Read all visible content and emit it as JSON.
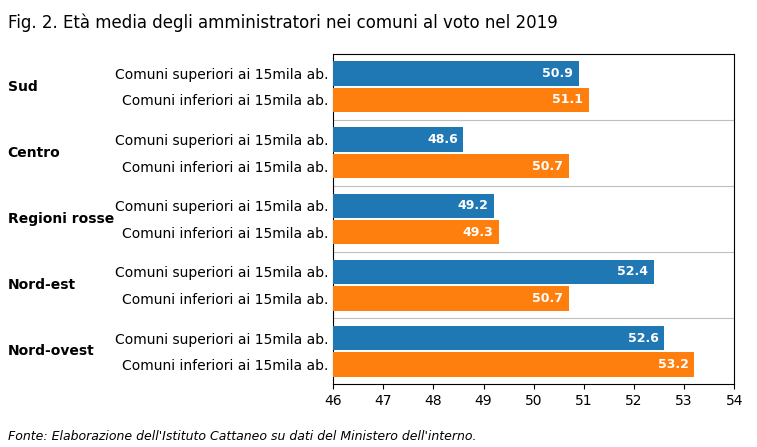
{
  "chart_data": {
    "type": "bar",
    "orientation": "horizontal",
    "title": "Fig. 2. Età media degli amministratori nei comuni al voto nel 2019",
    "footnote": "Fonte: Elaborazione dell'Istituto Cattaneo su dati del Ministero dell'interno.",
    "categories": [
      "Sud",
      "Centro",
      "Regioni rosse",
      "Nord-est",
      "Nord-ovest"
    ],
    "series": [
      {
        "name": "Comuni superiori ai 15mila ab.",
        "values": [
          50.9,
          48.6,
          49.2,
          52.4,
          52.6
        ]
      },
      {
        "name": "Comuni inferiori ai 15mila ab.",
        "values": [
          51.1,
          50.7,
          49.3,
          50.7,
          53.2
        ]
      }
    ],
    "xlim": [
      46,
      54
    ],
    "xticks": [
      46,
      47,
      48,
      49,
      50,
      51,
      52,
      53,
      54
    ],
    "data_labels": true,
    "grid": false
  }
}
